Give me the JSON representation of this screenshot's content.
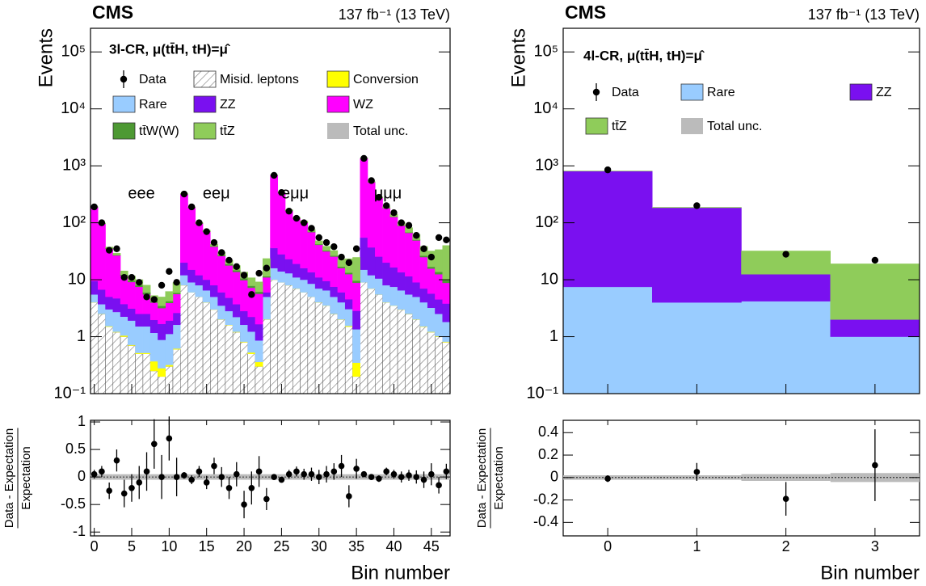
{
  "chart_data": [
    {
      "type": "stacked_hist",
      "title": "CMS",
      "lumi": "137 fb⁻¹ (13 TeV)",
      "subtitle": "3l-CR, μ(tt̄H, tH)=μ̂",
      "regions": [
        "eee",
        "eeμ",
        "eμμ",
        "μμμ"
      ],
      "ylabel": "Events",
      "xlabel": "Bin number",
      "log_y": true,
      "xlim": [
        -0.5,
        47.5
      ],
      "ylim": [
        0.1,
        260000
      ],
      "yticks": [
        {
          "value": 0.1,
          "label": "10⁻¹"
        },
        1,
        10,
        {
          "value": 100,
          "label": "10²"
        },
        {
          "value": 1000,
          "label": "10³"
        },
        {
          "value": 10000,
          "label": "10⁴"
        },
        {
          "value": 100000,
          "label": "10⁵"
        }
      ],
      "xticks": [
        0,
        5,
        10,
        15,
        20,
        25,
        30,
        35,
        40,
        45
      ],
      "series": [
        {
          "name": "Misid. leptons",
          "color": "#777777",
          "hatch": true,
          "values": [
            4,
            2.5,
            1.5,
            1.2,
            1,
            0.7,
            0.5,
            0.5,
            0.25,
            0.2,
            0.3,
            0.6,
            8,
            6,
            5,
            4,
            3,
            2,
            1.6,
            1.2,
            0.8,
            0.5,
            0.3,
            2,
            10,
            9,
            8,
            7,
            6,
            5,
            4,
            3.5,
            2.5,
            2,
            1.5,
            0.2,
            9,
            7,
            5.5,
            4,
            3.5,
            3,
            2.5,
            2,
            1.5,
            1.2,
            1,
            0.8
          ]
        },
        {
          "name": "Conversion",
          "color": "#ffff00",
          "values": [
            0.02,
            0.02,
            0.03,
            0.02,
            0.05,
            0.02,
            0.02,
            0.02,
            0.12,
            0.08,
            0.02,
            0.02,
            0.03,
            0.02,
            0.02,
            0.02,
            0.02,
            0.02,
            0.02,
            0.02,
            0.02,
            0.03,
            0.06,
            0.02,
            0.03,
            0.02,
            0.02,
            0.02,
            0.02,
            0.02,
            0.02,
            0.02,
            0.02,
            0.02,
            0.05,
            0.15,
            0.02,
            0.02,
            0.02,
            0.02,
            0.02,
            0.02,
            0.02,
            0.02,
            0.02,
            0.02,
            0.02,
            0.02
          ]
        },
        {
          "name": "Rare",
          "color": "#99ccff",
          "values": [
            1.5,
            1.2,
            1.5,
            1.5,
            1.2,
            1.2,
            1,
            1,
            0.8,
            0.6,
            0.8,
            1,
            4,
            3,
            3,
            2.5,
            2,
            1.5,
            1.2,
            1,
            0.8,
            0.7,
            0.5,
            3,
            6,
            5,
            5,
            4,
            4,
            3.5,
            3,
            3,
            2.5,
            2,
            1.5,
            1,
            6,
            5,
            5,
            4,
            4,
            3.5,
            3,
            3,
            2.5,
            2,
            1.5,
            1
          ]
        },
        {
          "name": "ZZ",
          "color": "#7a10f0",
          "values": [
            4,
            3,
            2,
            2,
            1.5,
            1.2,
            1,
            1,
            0.8,
            0.8,
            0.8,
            1,
            8,
            6,
            4,
            3.5,
            3,
            2.5,
            2,
            1.5,
            1.2,
            1,
            0.8,
            1,
            20,
            14,
            10,
            8,
            6,
            5,
            4,
            3,
            2.5,
            2,
            1.5,
            1.5,
            40,
            25,
            15,
            12,
            9,
            7,
            6,
            4,
            3,
            2.5,
            2,
            2
          ]
        },
        {
          "name": "WZ",
          "color": "#ff00ff",
          "values": [
            180,
            90,
            30,
            22,
            8,
            6,
            5,
            3,
            2,
            1.5,
            2,
            3,
            300,
            170,
            85,
            60,
            30,
            20,
            13,
            10,
            7,
            5,
            4,
            5,
            650,
            310,
            140,
            100,
            85,
            55,
            30,
            22,
            18,
            10,
            8,
            6,
            1300,
            480,
            250,
            160,
            110,
            75,
            55,
            40,
            18,
            10,
            8,
            5
          ]
        },
        {
          "name": "tt̄W(W)",
          "color": "#4d9933",
          "values": [
            0.5,
            0.5,
            0.5,
            0.5,
            0.5,
            0.5,
            0.5,
            0.5,
            0.3,
            0.3,
            0.3,
            0.3,
            1,
            1,
            1,
            1,
            1,
            1,
            1,
            1,
            0.8,
            0.6,
            0.5,
            0.5,
            1.5,
            1.5,
            1.5,
            1.5,
            1.5,
            1.5,
            1.2,
            1.2,
            1,
            1,
            0.8,
            0.8,
            2,
            2,
            2,
            2,
            2,
            2,
            1.5,
            1.5,
            1.5,
            1.2,
            1.2,
            1
          ]
        },
        {
          "name": "tt̄Z",
          "color": "#8fcc5a",
          "values": [
            2,
            2,
            2,
            2,
            2,
            2,
            2,
            2,
            1,
            1.5,
            2,
            3,
            4,
            3,
            3,
            3,
            3,
            3,
            3,
            3,
            3,
            3,
            3,
            12,
            6,
            5,
            5,
            5,
            5,
            6,
            6,
            6,
            6,
            6,
            10,
            15,
            8,
            8,
            10,
            10,
            12,
            12,
            14,
            12,
            12,
            15,
            20,
            30
          ]
        }
      ],
      "data": {
        "name": "Data",
        "color": "#000000",
        "values": [
          190,
          100,
          33,
          35,
          11,
          11,
          9,
          5,
          4.5,
          8,
          14,
          9,
          320,
          190,
          100,
          70,
          45,
          30,
          22,
          17,
          12,
          5.5,
          13,
          16,
          680,
          340,
          160,
          120,
          100,
          80,
          55,
          45,
          38,
          25,
          20,
          35,
          1350,
          550,
          280,
          200,
          150,
          100,
          90,
          60,
          35,
          25,
          55,
          50
        ]
      },
      "unc": {
        "name": "Total unc.",
        "color": "#bbbbbb"
      },
      "ratio": {
        "ylabel": [
          "Data - Expectation",
          "Expectation"
        ],
        "ylim": [
          -1.07,
          1.03
        ],
        "yticks": [
          -1,
          -0.5,
          0,
          0.5,
          1
        ],
        "values": [
          0.05,
          0.1,
          -0.25,
          0.3,
          -0.3,
          -0.2,
          -0.1,
          0.1,
          0.6,
          0,
          0.7,
          0,
          0.03,
          -0.05,
          0.1,
          -0.1,
          0.2,
          0,
          -0.2,
          0.05,
          -0.5,
          -0.2,
          0.1,
          -0.4,
          0,
          -0.05,
          0.05,
          0.1,
          0.05,
          0.05,
          0,
          0.05,
          0.1,
          0.2,
          -0.35,
          0.15,
          0.05,
          0,
          -0.03,
          0.1,
          0.05,
          0,
          0.03,
          0,
          -0.05,
          0.05,
          -0.15,
          0.1
        ],
        "errors": [
          0.08,
          0.1,
          0.15,
          0.2,
          0.25,
          0.25,
          0.3,
          0.35,
          0.45,
          0.4,
          0.4,
          0.35,
          0.06,
          0.08,
          0.1,
          0.12,
          0.15,
          0.18,
          0.2,
          0.22,
          0.25,
          0.3,
          0.28,
          0.2,
          0.04,
          0.05,
          0.08,
          0.09,
          0.1,
          0.12,
          0.13,
          0.15,
          0.15,
          0.2,
          0.2,
          0.18,
          0.03,
          0.04,
          0.06,
          0.07,
          0.08,
          0.1,
          0.1,
          0.12,
          0.15,
          0.2,
          0.15,
          0.14
        ],
        "band": [
          0.05,
          0.05,
          0.05,
          0.05,
          0.05,
          0.05,
          0.05,
          0.05,
          0.05,
          0.05,
          0.05,
          0.05,
          0.05,
          0.05,
          0.05,
          0.05,
          0.05,
          0.05,
          0.05,
          0.05,
          0.05,
          0.05,
          0.05,
          0.05,
          0.05,
          0.05,
          0.05,
          0.05,
          0.05,
          0.05,
          0.05,
          0.05,
          0.05,
          0.05,
          0.05,
          0.05,
          0.05,
          0.05,
          0.05,
          0.05,
          0.05,
          0.05,
          0.05,
          0.05,
          0.05,
          0.05,
          0.05,
          0.05
        ]
      }
    },
    {
      "type": "stacked_hist",
      "title": "CMS",
      "lumi": "137 fb⁻¹ (13 TeV)",
      "subtitle": "4l-CR, μ(tt̄H, tH)=μ̂",
      "ylabel": "Events",
      "xlabel": "Bin number",
      "log_y": true,
      "xlim": [
        -0.5,
        3.5
      ],
      "ylim": [
        0.1,
        260000
      ],
      "yticks": [
        {
          "value": 0.1,
          "label": "10⁻¹"
        },
        1,
        10,
        {
          "value": 100,
          "label": "10²"
        },
        {
          "value": 1000,
          "label": "10³"
        },
        {
          "value": 10000,
          "label": "10⁴"
        },
        {
          "value": 100000,
          "label": "10⁵"
        }
      ],
      "xticks": [
        0,
        1,
        2,
        3
      ],
      "series": [
        {
          "name": "Rare",
          "color": "#99ccff",
          "values": [
            7.5,
            4,
            4.2,
            1
          ]
        },
        {
          "name": "ZZ",
          "color": "#7a10f0",
          "values": [
            800,
            180,
            8.3,
            1
          ]
        },
        {
          "name": "tt̄Z",
          "color": "#8fcc5a",
          "values": [
            5,
            3,
            19.5,
            17
          ]
        }
      ],
      "data": {
        "name": "Data",
        "color": "#000000",
        "values": [
          850,
          200,
          28,
          22
        ]
      },
      "unc": {
        "name": "Total unc.",
        "color": "#bbbbbb"
      },
      "ratio": {
        "ylabel": [
          "Data - Expectation",
          "Expectation"
        ],
        "ylim": [
          -0.52,
          0.51
        ],
        "yticks": [
          -0.4,
          -0.2,
          0,
          0.2,
          0.4
        ],
        "values": [
          -0.01,
          0.05,
          -0.19,
          0.11
        ],
        "errors": [
          0.03,
          0.08,
          0.15,
          0.32
        ],
        "band": [
          0.02,
          0.02,
          0.03,
          0.04
        ]
      }
    }
  ]
}
